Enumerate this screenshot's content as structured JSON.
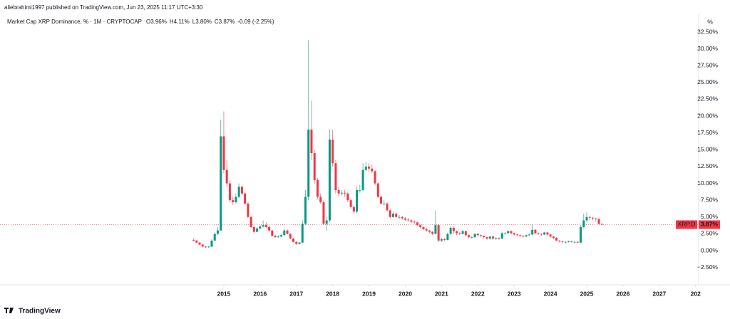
{
  "chart_data": {
    "type": "candlestick",
    "header": "aliebrahimi1997 published on TradingView.com, Jun 23, 2025 11:17 UTC+3:30",
    "title": "Market Cap XRP Dominance, % · 1M · CRYPTOCAP",
    "legend_values": [
      {
        "name": "O",
        "value": 3.96,
        "label": "3.96%"
      },
      {
        "name": "H",
        "value": 4.11,
        "label": "4.11%"
      },
      {
        "name": "L",
        "value": 3.8,
        "label": "3.80%"
      },
      {
        "name": "C",
        "value": 3.87,
        "label": "3.87%"
      }
    ],
    "change_label": "-0.09 (-2.25%)",
    "axis_unit": "%",
    "symbol": "XRP.D",
    "last_price": {
      "value": 3.87,
      "label": "3.87%"
    },
    "brand": "TradingView",
    "up_color": "#089981",
    "down_color": "#f23645",
    "grid": false,
    "x": [
      "2014-03",
      "2014-04",
      "2014-05",
      "2014-06",
      "2014-07",
      "2014-08",
      "2014-09",
      "2014-10",
      "2014-11",
      "2014-12",
      "2015-01",
      "2015-02",
      "2015-03",
      "2015-04",
      "2015-05",
      "2015-06",
      "2015-07",
      "2015-08",
      "2015-09",
      "2015-10",
      "2015-11",
      "2015-12",
      "2016-01",
      "2016-02",
      "2016-03",
      "2016-04",
      "2016-05",
      "2016-06",
      "2016-07",
      "2016-08",
      "2016-09",
      "2016-10",
      "2016-11",
      "2016-12",
      "2017-01",
      "2017-02",
      "2017-03",
      "2017-04",
      "2017-05",
      "2017-06",
      "2017-07",
      "2017-08",
      "2017-09",
      "2017-10",
      "2017-11",
      "2017-12",
      "2018-01",
      "2018-02",
      "2018-03",
      "2018-04",
      "2018-05",
      "2018-06",
      "2018-07",
      "2018-08",
      "2018-09",
      "2018-10",
      "2018-11",
      "2018-12",
      "2019-01",
      "2019-02",
      "2019-03",
      "2019-04",
      "2019-05",
      "2019-06",
      "2019-07",
      "2019-08",
      "2019-09",
      "2019-10",
      "2019-11",
      "2019-12",
      "2020-01",
      "2020-02",
      "2020-03",
      "2020-04",
      "2020-05",
      "2020-06",
      "2020-07",
      "2020-08",
      "2020-09",
      "2020-10",
      "2020-11",
      "2020-12",
      "2021-01",
      "2021-02",
      "2021-03",
      "2021-04",
      "2021-05",
      "2021-06",
      "2021-07",
      "2021-08",
      "2021-09",
      "2021-10",
      "2021-11",
      "2021-12",
      "2022-01",
      "2022-02",
      "2022-03",
      "2022-04",
      "2022-05",
      "2022-06",
      "2022-07",
      "2022-08",
      "2022-09",
      "2022-10",
      "2022-11",
      "2022-12",
      "2023-01",
      "2023-02",
      "2023-03",
      "2023-04",
      "2023-05",
      "2023-06",
      "2023-07",
      "2023-08",
      "2023-09",
      "2023-10",
      "2023-11",
      "2023-12",
      "2024-01",
      "2024-02",
      "2024-03",
      "2024-04",
      "2024-05",
      "2024-06",
      "2024-07",
      "2024-08",
      "2024-09",
      "2024-10",
      "2024-11",
      "2024-12",
      "2025-01",
      "2025-02",
      "2025-03",
      "2025-04",
      "2025-05",
      "2025-06"
    ],
    "open": [
      1.6,
      1.5,
      1.2,
      0.9,
      0.6,
      0.5,
      0.6,
      1.5,
      2.5,
      3.0,
      17.0,
      12.0,
      10.0,
      7.5,
      7.2,
      8.0,
      9.5,
      8.5,
      7.0,
      5.0,
      3.5,
      2.8,
      3.3,
      3.6,
      3.8,
      3.5,
      3.0,
      2.2,
      2.0,
      2.1,
      2.3,
      3.0,
      2.5,
      1.8,
      1.3,
      1.0,
      1.2,
      4.0,
      8.0,
      18.0,
      14.5,
      10.5,
      8.0,
      7.2,
      4.0,
      4.5,
      16.5,
      13.0,
      9.0,
      8.5,
      8.6,
      8.5,
      7.5,
      6.5,
      5.8,
      9.0,
      9.0,
      12.0,
      12.5,
      12.2,
      11.8,
      10.0,
      8.0,
      7.0,
      7.0,
      6.0,
      5.0,
      5.5,
      5.0,
      5.0,
      4.8,
      4.6,
      4.5,
      4.3,
      4.2,
      3.8,
      3.5,
      3.2,
      3.0,
      2.8,
      2.5,
      3.8,
      1.5,
      1.7,
      1.6,
      2.5,
      3.4,
      2.9,
      2.6,
      2.5,
      2.9,
      2.3,
      2.0,
      2.0,
      2.5,
      2.3,
      2.2,
      2.0,
      1.8,
      2.1,
      1.8,
      1.9,
      1.8,
      2.6,
      2.6,
      2.9,
      2.6,
      2.4,
      2.3,
      2.2,
      2.1,
      2.3,
      2.4,
      3.1,
      2.6,
      2.5,
      2.4,
      2.7,
      2.4,
      2.1,
      1.9,
      1.5,
      1.4,
      1.3,
      1.3,
      1.4,
      1.3,
      1.3,
      1.2,
      3.5,
      4.5,
      5.0,
      4.9,
      4.8,
      4.7,
      3.96
    ],
    "high": [
      1.8,
      1.6,
      1.3,
      1.0,
      0.7,
      0.7,
      1.7,
      2.7,
      3.5,
      19.5,
      20.7,
      13.5,
      10.5,
      8.0,
      8.5,
      10.0,
      9.8,
      8.7,
      7.2,
      5.2,
      3.7,
      3.5,
      3.8,
      4.5,
      4.2,
      3.7,
      3.1,
      2.4,
      2.3,
      2.5,
      3.3,
      3.2,
      2.6,
      1.9,
      1.4,
      1.3,
      4.5,
      9.0,
      31.3,
      22.3,
      15.0,
      10.8,
      8.5,
      7.5,
      5.0,
      18.0,
      18.0,
      13.5,
      9.5,
      9.0,
      9.0,
      8.7,
      7.8,
      6.8,
      9.5,
      9.8,
      13.0,
      13.2,
      13.0,
      12.8,
      12.0,
      10.2,
      8.2,
      7.5,
      7.2,
      6.2,
      5.8,
      5.7,
      5.3,
      5.2,
      5.0,
      4.9,
      4.7,
      4.5,
      4.3,
      3.9,
      3.6,
      3.4,
      3.1,
      2.9,
      6.0,
      4.0,
      1.9,
      1.9,
      2.7,
      3.7,
      3.6,
      3.0,
      2.8,
      3.1,
      3.0,
      2.4,
      2.2,
      2.6,
      2.6,
      2.4,
      2.3,
      2.1,
      2.2,
      2.2,
      2.0,
      2.0,
      2.8,
      2.8,
      3.0,
      3.0,
      2.7,
      2.5,
      2.4,
      2.3,
      2.4,
      2.6,
      3.9,
      3.2,
      2.7,
      2.6,
      2.8,
      2.8,
      2.5,
      2.2,
      2.0,
      1.6,
      1.5,
      1.4,
      1.5,
      1.5,
      1.4,
      1.4,
      3.8,
      5.5,
      5.7,
      5.2,
      5.0,
      4.9,
      4.8,
      4.11
    ],
    "low": [
      1.4,
      1.1,
      0.8,
      0.5,
      0.4,
      0.4,
      0.5,
      1.4,
      2.3,
      2.9,
      11.5,
      9.5,
      7.2,
      6.8,
      7.0,
      7.8,
      8.2,
      6.8,
      4.8,
      3.3,
      2.6,
      2.7,
      3.1,
      3.4,
      3.3,
      2.8,
      2.1,
      1.9,
      1.9,
      2.0,
      2.2,
      2.4,
      1.7,
      1.2,
      0.9,
      0.9,
      1.1,
      3.8,
      7.5,
      13.5,
      10.0,
      7.6,
      7.0,
      3.8,
      3.0,
      4.3,
      12.5,
      8.5,
      8.0,
      8.2,
      8.0,
      7.2,
      6.2,
      5.5,
      5.6,
      8.6,
      8.8,
      11.8,
      11.8,
      11.5,
      9.7,
      7.8,
      6.8,
      6.7,
      5.8,
      4.8,
      4.9,
      4.8,
      4.7,
      4.6,
      4.4,
      4.3,
      4.1,
      4.0,
      3.6,
      3.3,
      3.0,
      2.8,
      2.6,
      2.3,
      2.4,
      1.3,
      1.3,
      1.4,
      1.5,
      2.3,
      2.5,
      2.3,
      2.3,
      2.4,
      2.1,
      1.8,
      1.8,
      1.9,
      2.1,
      2.0,
      1.8,
      1.6,
      1.6,
      1.6,
      1.6,
      1.6,
      1.7,
      2.4,
      2.5,
      2.4,
      2.2,
      2.1,
      2.0,
      1.9,
      2.0,
      2.2,
      2.3,
      2.4,
      2.3,
      2.2,
      2.3,
      2.2,
      1.9,
      1.7,
      1.4,
      1.2,
      1.1,
      1.1,
      1.2,
      1.2,
      1.1,
      1.1,
      1.1,
      3.3,
      4.2,
      4.5,
      4.5,
      4.3,
      3.9,
      3.8
    ],
    "close": [
      1.5,
      1.2,
      0.9,
      0.6,
      0.5,
      0.6,
      1.5,
      2.5,
      3.0,
      17.0,
      12.0,
      10.0,
      7.5,
      7.2,
      8.0,
      9.5,
      8.5,
      7.0,
      5.0,
      3.5,
      2.8,
      3.3,
      3.6,
      3.8,
      3.5,
      3.0,
      2.2,
      2.0,
      2.1,
      2.3,
      3.0,
      2.5,
      1.8,
      1.3,
      1.0,
      1.2,
      4.0,
      8.0,
      18.0,
      14.5,
      10.5,
      8.0,
      7.2,
      4.0,
      4.5,
      16.5,
      13.0,
      9.0,
      8.5,
      8.6,
      8.5,
      7.5,
      6.5,
      5.8,
      9.0,
      9.0,
      12.0,
      12.5,
      12.2,
      11.8,
      10.0,
      8.0,
      7.0,
      7.0,
      6.0,
      5.0,
      5.5,
      5.0,
      5.0,
      4.8,
      4.6,
      4.5,
      4.3,
      4.2,
      3.8,
      3.5,
      3.2,
      3.0,
      2.8,
      2.5,
      3.8,
      1.5,
      1.7,
      1.6,
      2.5,
      3.4,
      2.9,
      2.6,
      2.5,
      2.9,
      2.3,
      2.0,
      2.0,
      2.5,
      2.3,
      2.2,
      2.0,
      1.8,
      2.1,
      1.8,
      1.9,
      1.8,
      2.6,
      2.6,
      2.9,
      2.6,
      2.4,
      2.3,
      2.2,
      2.1,
      2.3,
      2.4,
      3.1,
      2.6,
      2.5,
      2.4,
      2.7,
      2.4,
      2.1,
      1.9,
      1.5,
      1.4,
      1.3,
      1.3,
      1.4,
      1.3,
      1.3,
      1.2,
      3.5,
      4.5,
      5.0,
      4.9,
      4.8,
      4.7,
      3.96,
      3.87
    ],
    "xlim": [
      "2008-11",
      "2028-02"
    ],
    "xticks": [
      {
        "value": "2015-01",
        "label": "2015"
      },
      {
        "value": "2016-01",
        "label": "2016"
      },
      {
        "value": "2017-01",
        "label": "2017"
      },
      {
        "value": "2018-01",
        "label": "2018"
      },
      {
        "value": "2019-01",
        "label": "2019"
      },
      {
        "value": "2020-01",
        "label": "2020"
      },
      {
        "value": "2021-01",
        "label": "2021"
      },
      {
        "value": "2022-01",
        "label": "2022"
      },
      {
        "value": "2023-01",
        "label": "2023"
      },
      {
        "value": "2024-01",
        "label": "2024"
      },
      {
        "value": "2025-01",
        "label": "2025"
      },
      {
        "value": "2026-01",
        "label": "2026"
      },
      {
        "value": "2027-01",
        "label": "2027"
      },
      {
        "value": "2028-01",
        "label": "202"
      }
    ],
    "ylim": [
      -5.08,
      35.15
    ],
    "yticks": [
      {
        "value": -2.5,
        "label": "−2.50%"
      },
      {
        "value": 0,
        "label": "0.00%"
      },
      {
        "value": 2.5,
        "label": "2.50%"
      },
      {
        "value": 5,
        "label": "5.00%"
      },
      {
        "value": 7.5,
        "label": "7.50%"
      },
      {
        "value": 10,
        "label": "10.00%"
      },
      {
        "value": 12.5,
        "label": "12.50%"
      },
      {
        "value": 15,
        "label": "15.00%"
      },
      {
        "value": 17.5,
        "label": "17.50%"
      },
      {
        "value": 20,
        "label": "20.00%"
      },
      {
        "value": 22.5,
        "label": "22.50%"
      },
      {
        "value": 25,
        "label": "25.00%"
      },
      {
        "value": 27.5,
        "label": "27.50%"
      },
      {
        "value": 30,
        "label": "30.00%"
      },
      {
        "value": 32.5,
        "label": "32.50%"
      }
    ]
  }
}
